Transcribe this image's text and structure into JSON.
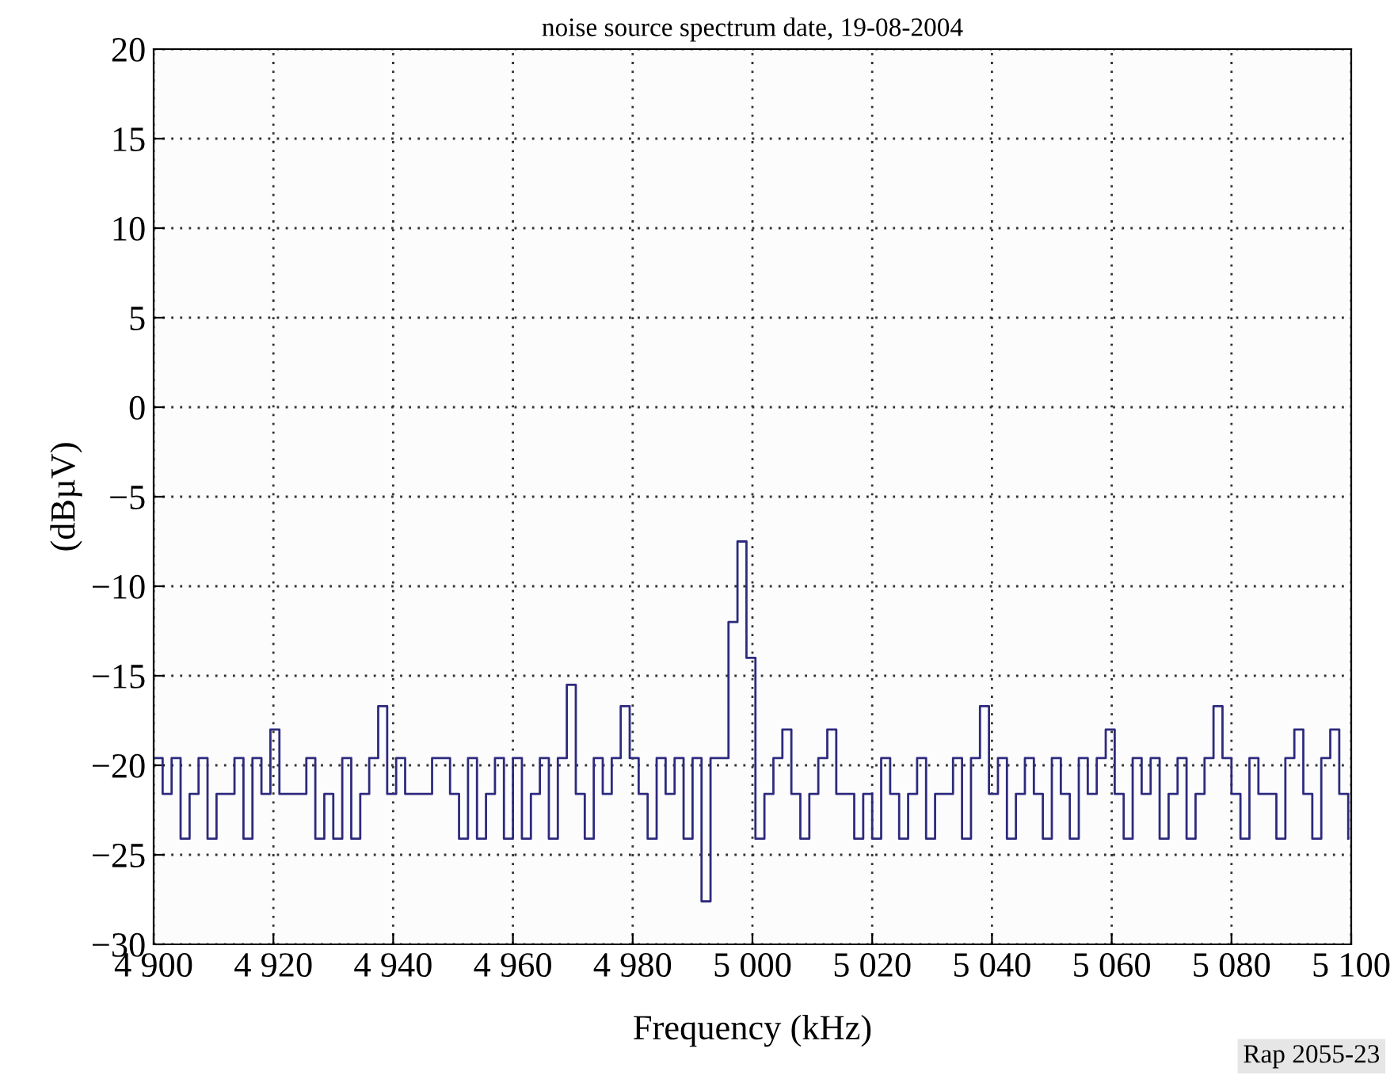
{
  "chart_data": {
    "type": "step",
    "title": "noise source spectrum date, 19-08-2004",
    "xlabel": "Frequency (kHz)",
    "ylabel": "(dBµV)",
    "annotations": [
      "Rap 2055-23"
    ],
    "x": [
      4900,
      4901.5,
      4903,
      4904.5,
      4906,
      4907.5,
      4909,
      4910.5,
      4912,
      4913.5,
      4915,
      4916.5,
      4918,
      4919.5,
      4921,
      4922.5,
      4924,
      4925.5,
      4927,
      4928.5,
      4930,
      4931.5,
      4933,
      4934.5,
      4936,
      4937.5,
      4939,
      4940.5,
      4942,
      4943.5,
      4945,
      4946.5,
      4948,
      4949.5,
      4951,
      4952.5,
      4954,
      4955.5,
      4957,
      4958.5,
      4960,
      4961.5,
      4963,
      4964.5,
      4966,
      4967.5,
      4969,
      4970.5,
      4972,
      4973.5,
      4975,
      4976.5,
      4978,
      4979.5,
      4981,
      4982.5,
      4984,
      4985.5,
      4987,
      4988.5,
      4990,
      4991.5,
      4993,
      4994.5,
      4996,
      4997.5,
      4999,
      5000.5,
      5002,
      5003.5,
      5005,
      5006.5,
      5008,
      5009.5,
      5011,
      5012.5,
      5014,
      5015.5,
      5017,
      5018.5,
      5020,
      5021.5,
      5023,
      5024.5,
      5026,
      5027.5,
      5029,
      5030.5,
      5032,
      5033.5,
      5035,
      5036.5,
      5038,
      5039.5,
      5041,
      5042.5,
      5044,
      5045.5,
      5047,
      5048.5,
      5050,
      5051.5,
      5053,
      5054.5,
      5056,
      5057.5,
      5059,
      5060.5,
      5062,
      5063.5,
      5065,
      5066.5,
      5068,
      5069.5,
      5071,
      5072.5,
      5074,
      5075.5,
      5077,
      5078.5,
      5080,
      5081.5,
      5083,
      5084.5,
      5086,
      5087.5,
      5089,
      5090.5,
      5092,
      5093.5,
      5095,
      5096.5,
      5098,
      5099.5
    ],
    "series": [
      {
        "color": "#2e2a7e",
        "values": [
          -19.6,
          -21.6,
          -19.6,
          -24.1,
          -21.6,
          -19.6,
          -24.1,
          -21.6,
          -21.6,
          -19.6,
          -24.1,
          -19.6,
          -21.6,
          -18.0,
          -21.6,
          -21.6,
          -21.6,
          -19.6,
          -24.1,
          -21.6,
          -24.1,
          -19.6,
          -24.1,
          -21.6,
          -19.6,
          -16.7,
          -21.6,
          -19.6,
          -21.6,
          -21.6,
          -21.6,
          -19.6,
          -19.6,
          -21.6,
          -24.1,
          -19.6,
          -24.1,
          -21.6,
          -19.6,
          -24.1,
          -19.6,
          -24.1,
          -21.6,
          -19.6,
          -24.1,
          -19.6,
          -15.5,
          -21.6,
          -24.1,
          -19.6,
          -21.6,
          -19.6,
          -16.7,
          -19.6,
          -21.6,
          -24.1,
          -19.6,
          -21.6,
          -19.6,
          -24.1,
          -19.6,
          -27.6,
          -19.6,
          -19.6,
          -12.0,
          -7.5,
          -14.0,
          -24.1,
          -21.6,
          -19.6,
          -18.0,
          -21.6,
          -24.1,
          -21.6,
          -19.6,
          -18.0,
          -21.6,
          -21.6,
          -24.1,
          -21.6,
          -24.1,
          -19.6,
          -21.6,
          -24.1,
          -21.6,
          -19.6,
          -24.1,
          -21.6,
          -21.6,
          -19.6,
          -24.1,
          -19.6,
          -16.7,
          -21.6,
          -19.6,
          -24.1,
          -21.6,
          -19.6,
          -21.6,
          -24.1,
          -19.6,
          -21.6,
          -24.1,
          -19.6,
          -21.6,
          -19.6,
          -18.0,
          -21.6,
          -24.1,
          -19.6,
          -21.6,
          -19.6,
          -24.1,
          -21.6,
          -19.6,
          -24.1,
          -21.6,
          -19.6,
          -16.7,
          -19.6,
          -21.6,
          -24.1,
          -19.6,
          -21.6,
          -21.6,
          -24.1,
          -19.6,
          -18.0,
          -21.6,
          -24.1,
          -19.6,
          -18.0,
          -21.6,
          -24.1
        ]
      }
    ],
    "xlim": [
      4900,
      5100
    ],
    "xticks": [
      {
        "value": 4900,
        "label": "4 900"
      },
      {
        "value": 4920,
        "label": "4 920"
      },
      {
        "value": 4940,
        "label": "4 940"
      },
      {
        "value": 4960,
        "label": "4 960"
      },
      {
        "value": 4980,
        "label": "4 980"
      },
      {
        "value": 5000,
        "label": "5 000"
      },
      {
        "value": 5020,
        "label": "5 020"
      },
      {
        "value": 5040,
        "label": "5 040"
      },
      {
        "value": 5060,
        "label": "5 060"
      },
      {
        "value": 5080,
        "label": "5 080"
      },
      {
        "value": 5100,
        "label": "5 100"
      }
    ],
    "ylim": [
      -30,
      20
    ],
    "yticks": [
      {
        "value": -30,
        "label": "−30"
      },
      {
        "value": -25,
        "label": "−25"
      },
      {
        "value": -20,
        "label": "−20"
      },
      {
        "value": -15,
        "label": "−15"
      },
      {
        "value": -10,
        "label": "−10"
      },
      {
        "value": -5,
        "label": "−5"
      },
      0,
      5,
      10,
      15,
      20
    ],
    "grid": true,
    "legend": false,
    "marker": "none",
    "line_style": "solid"
  }
}
